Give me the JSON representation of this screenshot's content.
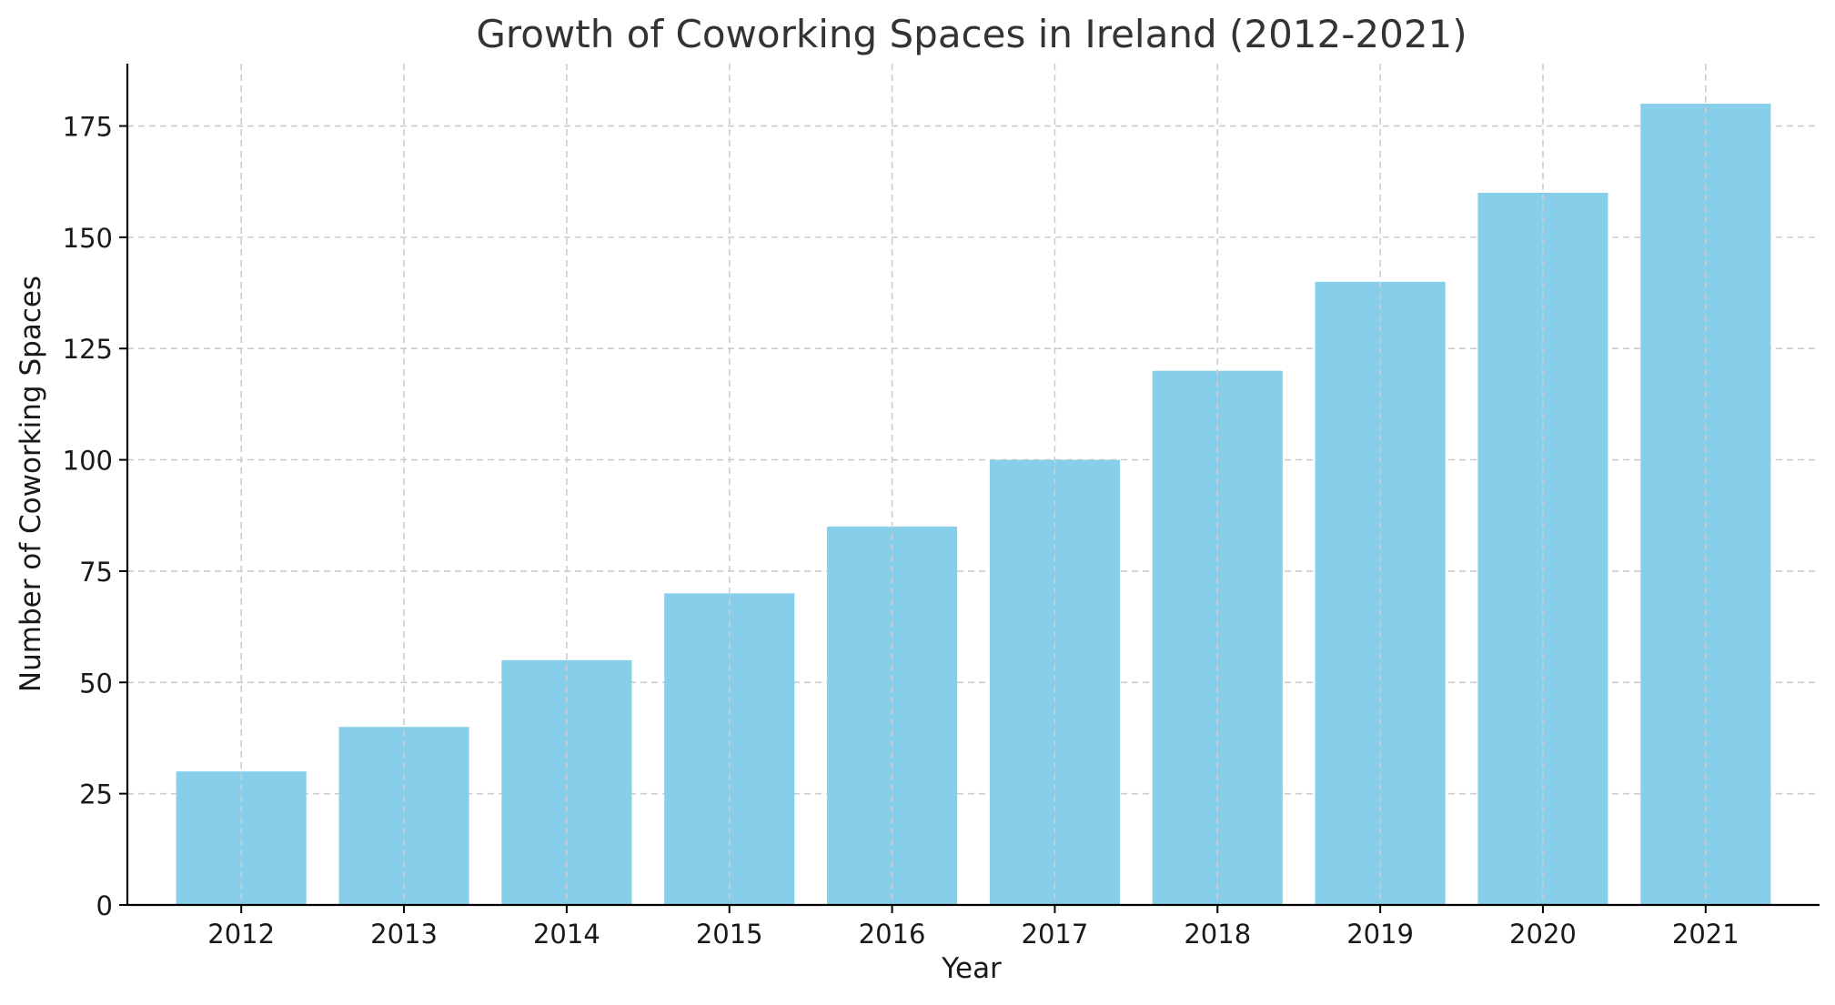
{
  "chart_data": {
    "type": "bar",
    "title": "Growth of Coworking Spaces in Ireland (2012-2021)",
    "xlabel": "Year",
    "ylabel": "Number of Coworking Spaces",
    "categories": [
      "2012",
      "2013",
      "2014",
      "2015",
      "2016",
      "2017",
      "2018",
      "2019",
      "2020",
      "2021"
    ],
    "values": [
      30,
      40,
      55,
      70,
      85,
      100,
      120,
      140,
      160,
      180
    ],
    "ylim": [
      0,
      189
    ],
    "yticks": [
      0,
      25,
      50,
      75,
      100,
      125,
      150,
      175
    ],
    "grid": true,
    "legend": "none",
    "bar_color": "#87CEEB",
    "grid_color": "#cccccc",
    "text_color": "#1a1a1a"
  }
}
